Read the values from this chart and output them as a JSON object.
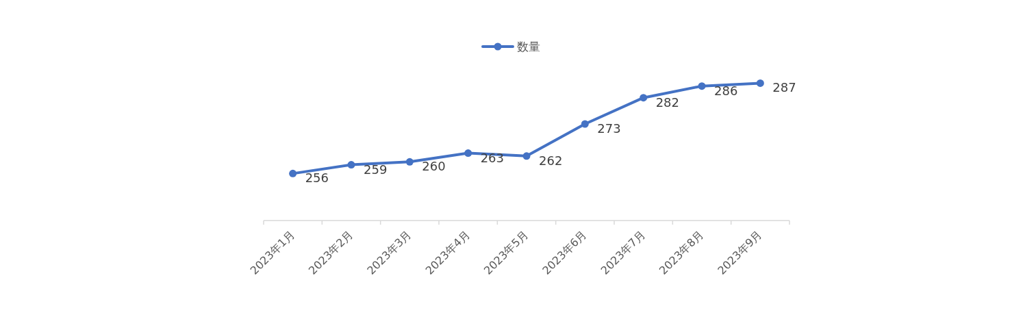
{
  "chart_data": {
    "type": "line",
    "categories": [
      "2023年1月",
      "2023年2月",
      "2023年3月",
      "2023年4月",
      "2023年5月",
      "2023年6月",
      "2023年7月",
      "2023年8月",
      "2023年9月"
    ],
    "series": [
      {
        "name": "数量",
        "color": "#4472c4",
        "values": [
          256,
          259,
          260,
          263,
          262,
          273,
          282,
          286,
          287
        ]
      }
    ],
    "data_labels": true,
    "legend": "top",
    "marker": "circle",
    "line_style": "solid",
    "tick_labels": "x"
  }
}
